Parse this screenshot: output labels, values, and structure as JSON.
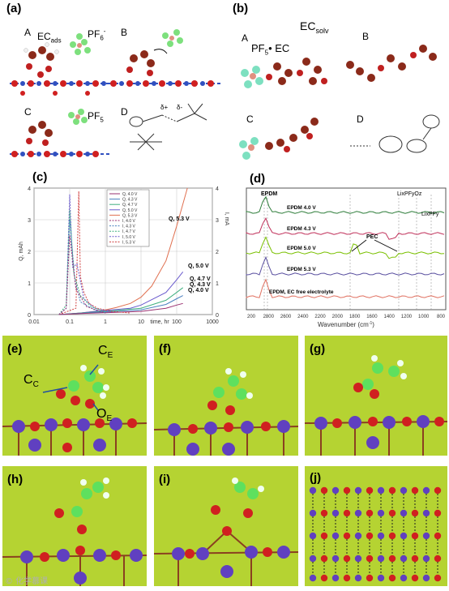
{
  "panels": {
    "a": {
      "label": "(a)",
      "sub": {
        "A": "A",
        "B": "B",
        "C": "C",
        "D": "D"
      },
      "ec_ads": "EC",
      "ec_ads_sub": "ads",
      "pf6_minus": "PF",
      "pf6_minus_sub": "6",
      "pf6_minus_sup": "-",
      "pf5": "PF",
      "pf5_sub": "5",
      "delta_plus": "δ+",
      "delta_minus": "δ-"
    },
    "b": {
      "label": "(b)",
      "sub": {
        "A": "A",
        "B": "B",
        "C": "C",
        "D": "D"
      },
      "ec_solv": "EC",
      "ec_solv_sub": "solv",
      "pf5ec": "PF",
      "pf5ec_sub": "5",
      "pf5ec_rest": "• EC"
    },
    "c": {
      "label": "(c)"
    },
    "d": {
      "label": "(d)"
    },
    "e": {
      "label": "(e)",
      "cc": "C",
      "cc_sub": "C",
      "ce": "C",
      "ce_sub": "E",
      "oe": "O",
      "oe_sub": "E"
    },
    "f": {
      "label": "(f)"
    },
    "g": {
      "label": "(g)"
    },
    "h": {
      "label": "(h)"
    },
    "i": {
      "label": "(i)"
    },
    "j": {
      "label": "(j)"
    }
  },
  "watermark": "© 化学慕课",
  "chart_data": [
    {
      "type": "line",
      "panel": "c",
      "xscale": "log",
      "xlim": [
        0.01,
        1000
      ],
      "ylim": [
        0,
        4
      ],
      "xticks": [
        "0.01",
        "0.1",
        "1",
        "10",
        "100",
        "1000"
      ],
      "yticks": [
        "0",
        "1",
        "2",
        "3",
        "4"
      ],
      "xlabel": "time, hr",
      "ylabel": "Q, mAh",
      "ylabel_right": "I, mA",
      "grid": true,
      "legend": "top-center",
      "legend_entries": [
        "Q, 4.0 V",
        "Q, 4.3 V",
        "Q, 4.7 V",
        "Q, 5.0 V",
        "Q, 5.3 V",
        "I, 4.0 V",
        "I, 4.3 V",
        "I, 4.7 V",
        "I, 5.0 V",
        "I, 5.3 V"
      ],
      "annotations": [
        "Q, 5.3 V",
        "Q, 5.0 V",
        "Q, 4.7 V",
        "Q, 4.3 V",
        "Q, 4.0 V"
      ],
      "series": [
        {
          "name": "Q, 5.3 V",
          "color": "#e07050",
          "x": [
            0.05,
            0.2,
            0.5,
            1,
            2,
            5,
            10,
            20,
            50,
            100,
            200
          ],
          "y": [
            0,
            0.05,
            0.1,
            0.15,
            0.22,
            0.35,
            0.55,
            0.9,
            1.7,
            2.8,
            4.2
          ]
        },
        {
          "name": "Q, 5.0 V",
          "color": "#6a5acd",
          "x": [
            0.05,
            0.2,
            0.5,
            1,
            5,
            10,
            50,
            100,
            150
          ],
          "y": [
            0,
            0.05,
            0.1,
            0.13,
            0.2,
            0.3,
            0.7,
            1.1,
            1.35
          ]
        },
        {
          "name": "Q, 4.7 V",
          "color": "#40b080",
          "x": [
            0.05,
            0.2,
            1,
            10,
            50,
            100,
            150
          ],
          "y": [
            0,
            0.05,
            0.1,
            0.2,
            0.45,
            0.7,
            0.85
          ]
        },
        {
          "name": "Q, 4.3 V",
          "color": "#4a80c0",
          "x": [
            0.05,
            0.2,
            1,
            10,
            50,
            100,
            150
          ],
          "y": [
            0,
            0.04,
            0.08,
            0.15,
            0.32,
            0.5,
            0.6
          ]
        },
        {
          "name": "Q, 4.0 V",
          "color": "#9a3070",
          "x": [
            0.05,
            0.2,
            1,
            10,
            50,
            100,
            150
          ],
          "y": [
            0,
            0.03,
            0.06,
            0.1,
            0.2,
            0.3,
            0.35
          ]
        },
        {
          "name": "I, 5.3 V",
          "color": "#d04040",
          "x": [
            0.05,
            0.15,
            0.18,
            0.2,
            0.25,
            0.35,
            0.6,
            1.5,
            5
          ],
          "y": [
            0,
            0.2,
            3.9,
            1.2,
            0.7,
            0.35,
            0.2,
            0.1,
            0.05
          ]
        },
        {
          "name": "I, 5.0 V",
          "color": "#6a5acd",
          "x": [
            0.05,
            0.08,
            0.1,
            0.12,
            0.16,
            0.25,
            0.5,
            1.5
          ],
          "y": [
            0,
            0.2,
            3.8,
            1.5,
            1.6,
            0.5,
            0.2,
            0.08
          ]
        },
        {
          "name": "I, 4.7 V",
          "color": "#40b080",
          "x": [
            0.05,
            0.08,
            0.1,
            0.13,
            0.2,
            0.4,
            1
          ],
          "y": [
            0,
            0.3,
            3.3,
            1.3,
            0.6,
            0.25,
            0.08
          ]
        },
        {
          "name": "I, 4.3 V",
          "color": "#4a80c0",
          "x": [
            0.05,
            0.08,
            0.1,
            0.14,
            0.2,
            0.5,
            1
          ],
          "y": [
            0,
            0.2,
            3.0,
            1.1,
            0.4,
            0.15,
            0.06
          ]
        },
        {
          "name": "I, 4.0 V",
          "color": "#9a3070",
          "x": [
            0.05,
            0.08,
            0.1,
            0.15,
            0.3,
            1
          ],
          "y": [
            0,
            0.2,
            2.5,
            0.8,
            0.25,
            0.05
          ]
        }
      ]
    },
    {
      "type": "line",
      "panel": "d",
      "xlabel": "Wavenumber (cm",
      "xlabel_sup": "-1",
      "xlabel_end": ")",
      "ylabel": "",
      "xlim": [
        3100,
        700
      ],
      "xticks": [
        "200",
        "2800",
        "2600",
        "2400",
        "2200",
        "2000",
        "1800",
        "1600",
        "1400",
        "1200",
        "1000",
        "800"
      ],
      "annotations": [
        "EPDM",
        "PEC",
        "LixPFyOz",
        "LixPFy"
      ],
      "series": [
        {
          "name": "EPDM 4.0 V",
          "color": "#2e7d3a",
          "offset": 5
        },
        {
          "name": "EPDM 4.3 V",
          "color": "#c0305a",
          "offset": 4
        },
        {
          "name": "EPDM 5.0 V",
          "color": "#7ac000",
          "offset": 3
        },
        {
          "name": "EPDM 5.3 V",
          "color": "#5a50a0",
          "offset": 2
        },
        {
          "name": "EPDM, EC free electrolyte",
          "color": "#e07060",
          "offset": 1
        }
      ]
    }
  ]
}
